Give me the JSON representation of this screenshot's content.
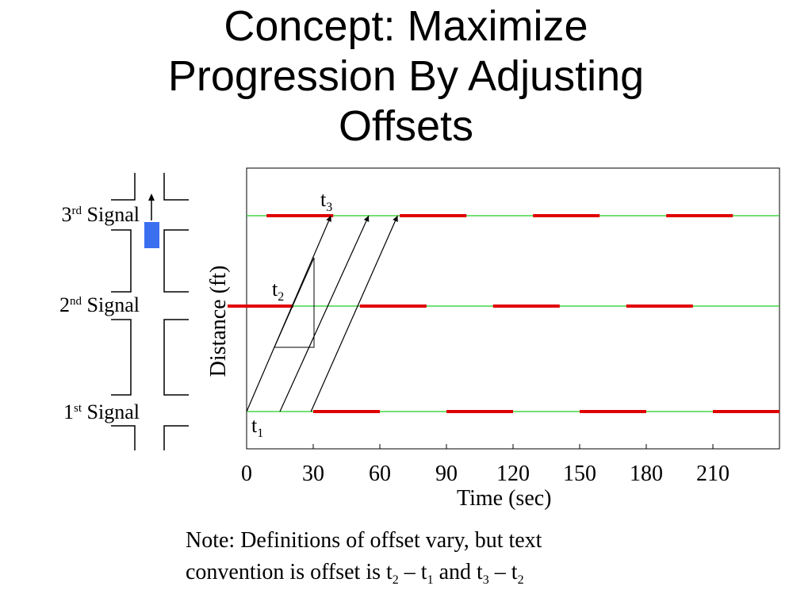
{
  "slide": {
    "title_lines": [
      "Concept:  Maximize",
      "Progression By Adjusting",
      "Offsets"
    ]
  },
  "intersection": {
    "signals": [
      {
        "num": "3",
        "sup": "rd",
        "word": "Signal"
      },
      {
        "num": "2",
        "sup": "nd",
        "word": "Signal"
      },
      {
        "num": "1",
        "sup": "st",
        "word": "Signal"
      }
    ],
    "vehicle_color": "#3a6ff0"
  },
  "chart_data": {
    "type": "time-space diagram",
    "xlabel": "Time (sec)",
    "ylabel": "Distance (ft)",
    "xlim": [
      0,
      240
    ],
    "x_ticks": [
      0,
      30,
      60,
      90,
      120,
      150,
      180,
      210
    ],
    "signal_levels": [
      {
        "signal": "3rd Signal",
        "red_intervals": [
          [
            9,
            39
          ],
          [
            69,
            99
          ],
          [
            129,
            159
          ],
          [
            189,
            219
          ]
        ]
      },
      {
        "signal": "2nd Signal",
        "red_intervals": [
          [
            -9,
            21
          ],
          [
            51,
            81
          ],
          [
            111,
            141
          ],
          [
            171,
            201
          ]
        ]
      },
      {
        "signal": "1st Signal",
        "red_intervals": [
          [
            30,
            60
          ],
          [
            90,
            120
          ],
          [
            150,
            180
          ],
          [
            210,
            240
          ]
        ]
      }
    ],
    "trajectories": [
      {
        "from_time": 0,
        "to_time": 38
      },
      {
        "from_time": 15,
        "to_time": 55
      },
      {
        "from_time": 29,
        "to_time": 68
      }
    ],
    "offset_markers": [
      {
        "sub": "1",
        "at_signal": "1st Signal"
      },
      {
        "sub": "2",
        "at_signal": "2nd Signal"
      },
      {
        "sub": "3",
        "at_signal": "3rd Signal"
      }
    ],
    "colors": {
      "red_phase": "#e00000",
      "level_line": "#22cc22",
      "trajectory": "#000000"
    }
  },
  "note": {
    "line1": "Note:  Definitions of offset vary, but text",
    "line2_prefix": "convention is offset is t",
    "sub_a": "2",
    "dash_1": " – t",
    "sub_b": "1",
    "and_t": " and t",
    "sub_c": "3",
    "dash_2": " – t",
    "sub_d": "2"
  }
}
